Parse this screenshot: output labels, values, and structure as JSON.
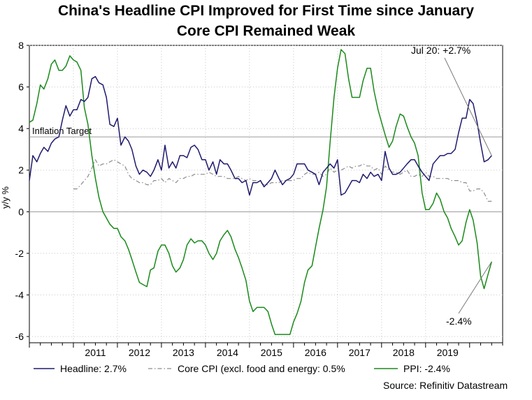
{
  "chart_data": {
    "type": "line",
    "title": "China's Headline CPI Improved for First Time since January",
    "subtitle": "Core CPI Remained Weak",
    "xlabel": "",
    "ylabel": "y/y %",
    "ylim": [
      -6.3,
      8
    ],
    "yticks": [
      8,
      6,
      4,
      2,
      0,
      -2,
      -4,
      -6
    ],
    "xticks": [
      "2011",
      "2012",
      "2013",
      "2014",
      "2015",
      "2016",
      "2017",
      "2018",
      "2019"
    ],
    "xlim": [
      2010.0,
      2020.75
    ],
    "grid": true,
    "reference_lines": [
      {
        "label": "Inflation Target",
        "value": 3.6
      },
      {
        "label": "",
        "value": 0
      }
    ],
    "annotations": [
      {
        "text": "Jul 20: +2.7%",
        "series": "Headline",
        "x": 2020.5,
        "y": 2.7
      },
      {
        "text": "-2.4%",
        "series": "PPI",
        "x": 2020.5,
        "y": -2.4
      }
    ],
    "x": [
      2010.0,
      2010.08,
      2010.17,
      2010.25,
      2010.33,
      2010.42,
      2010.5,
      2010.58,
      2010.67,
      2010.75,
      2010.83,
      2010.92,
      2011.0,
      2011.08,
      2011.17,
      2011.25,
      2011.33,
      2011.42,
      2011.5,
      2011.58,
      2011.67,
      2011.75,
      2011.83,
      2011.92,
      2012.0,
      2012.08,
      2012.17,
      2012.25,
      2012.33,
      2012.42,
      2012.5,
      2012.58,
      2012.67,
      2012.75,
      2012.83,
      2012.92,
      2013.0,
      2013.08,
      2013.17,
      2013.25,
      2013.33,
      2013.42,
      2013.5,
      2013.58,
      2013.67,
      2013.75,
      2013.83,
      2013.92,
      2014.0,
      2014.08,
      2014.17,
      2014.25,
      2014.33,
      2014.42,
      2014.5,
      2014.58,
      2014.67,
      2014.75,
      2014.83,
      2014.92,
      2015.0,
      2015.08,
      2015.17,
      2015.25,
      2015.33,
      2015.42,
      2015.5,
      2015.58,
      2015.67,
      2015.75,
      2015.83,
      2015.92,
      2016.0,
      2016.08,
      2016.17,
      2016.25,
      2016.33,
      2016.42,
      2016.5,
      2016.58,
      2016.67,
      2016.75,
      2016.83,
      2016.92,
      2017.0,
      2017.08,
      2017.17,
      2017.25,
      2017.33,
      2017.42,
      2017.5,
      2017.58,
      2017.67,
      2017.75,
      2017.83,
      2017.92,
      2018.0,
      2018.08,
      2018.17,
      2018.25,
      2018.33,
      2018.42,
      2018.5,
      2018.58,
      2018.67,
      2018.75,
      2018.83,
      2018.92,
      2019.0,
      2019.08,
      2019.17,
      2019.25,
      2019.33,
      2019.42,
      2019.5,
      2019.58,
      2019.67,
      2019.75,
      2019.83,
      2019.92,
      2020.0,
      2020.08,
      2020.17,
      2020.25,
      2020.33,
      2020.42,
      2020.5
    ],
    "series": [
      {
        "name": "Headline",
        "legend": "Headline: 2.7%",
        "color": "#1f1a6e",
        "style": "solid",
        "values": [
          1.5,
          2.7,
          2.4,
          2.8,
          3.1,
          2.9,
          3.3,
          3.5,
          3.6,
          4.4,
          5.1,
          4.6,
          4.9,
          4.9,
          5.4,
          5.3,
          5.5,
          6.4,
          6.5,
          6.2,
          6.1,
          5.5,
          4.2,
          4.1,
          4.5,
          3.2,
          3.6,
          3.4,
          3.0,
          2.2,
          1.8,
          2.0,
          1.9,
          1.7,
          2.0,
          2.5,
          2.0,
          3.2,
          2.1,
          2.4,
          2.1,
          2.7,
          2.7,
          2.6,
          3.1,
          3.2,
          3.0,
          2.5,
          2.5,
          2.0,
          2.4,
          1.8,
          2.5,
          2.3,
          2.3,
          2.0,
          1.6,
          1.6,
          1.4,
          1.5,
          0.8,
          1.4,
          1.4,
          1.5,
          1.2,
          1.4,
          1.6,
          2.0,
          1.6,
          1.3,
          1.5,
          1.6,
          1.8,
          2.3,
          2.3,
          2.3,
          2.0,
          1.9,
          1.8,
          1.3,
          1.9,
          2.1,
          2.3,
          2.1,
          2.5,
          0.8,
          0.9,
          1.2,
          1.5,
          1.5,
          1.4,
          1.8,
          1.6,
          1.9,
          1.7,
          1.8,
          1.5,
          2.9,
          2.1,
          1.8,
          1.8,
          1.9,
          2.1,
          2.3,
          2.5,
          2.5,
          2.2,
          1.9,
          1.7,
          1.5,
          2.3,
          2.5,
          2.7,
          2.7,
          2.8,
          2.8,
          3.0,
          3.8,
          4.5,
          4.5,
          5.4,
          5.2,
          4.3,
          3.3,
          2.4,
          2.5,
          2.7
        ]
      },
      {
        "name": "Core CPI",
        "legend": "Core CPI (excl. food and energy: 0.5%",
        "color": "#8c8c8c",
        "style": "dashdot",
        "values": [
          null,
          null,
          null,
          null,
          null,
          null,
          null,
          null,
          null,
          null,
          null,
          null,
          1.1,
          1.1,
          1.3,
          1.5,
          1.7,
          2.1,
          2.5,
          2.2,
          2.3,
          2.3,
          2.4,
          2.5,
          2.4,
          2.3,
          2.2,
          1.8,
          1.6,
          1.5,
          1.4,
          1.4,
          1.3,
          1.3,
          1.5,
          1.5,
          1.6,
          1.4,
          1.6,
          1.5,
          1.4,
          1.6,
          1.6,
          1.7,
          1.7,
          1.8,
          1.8,
          1.8,
          1.8,
          1.9,
          1.8,
          1.7,
          1.7,
          1.7,
          1.6,
          1.6,
          1.6,
          1.7,
          1.6,
          1.5,
          1.6,
          1.5,
          1.5,
          1.4,
          1.3,
          1.3,
          1.4,
          1.4,
          1.4,
          1.5,
          1.5,
          1.5,
          1.5,
          1.6,
          1.6,
          1.8,
          1.9,
          1.8,
          1.8,
          1.9,
          1.7,
          1.8,
          2.1,
          1.9,
          2.0,
          2.0,
          2.1,
          2.2,
          2.1,
          2.2,
          2.2,
          2.3,
          2.2,
          2.2,
          2.0,
          2.1,
          1.8,
          2.2,
          2.0,
          1.9,
          1.9,
          1.8,
          1.9,
          2.0,
          1.7,
          1.7,
          1.8,
          1.7,
          1.9,
          1.7,
          1.7,
          1.6,
          1.6,
          1.6,
          1.6,
          1.5,
          1.5,
          1.5,
          1.4,
          1.4,
          1.0,
          1.0,
          1.1,
          1.1,
          0.9,
          0.5,
          0.5
        ]
      },
      {
        "name": "PPI",
        "legend": "PPI: -2.4%",
        "color": "#1a8a1a",
        "style": "solid",
        "values": [
          4.3,
          4.4,
          5.2,
          6.1,
          5.9,
          6.4,
          7.1,
          7.3,
          6.8,
          6.8,
          7.0,
          7.5,
          7.3,
          7.2,
          6.8,
          5.0,
          4.2,
          2.7,
          1.6,
          0.7,
          0.0,
          -0.3,
          -0.6,
          -0.8,
          -0.8,
          -1.2,
          -1.4,
          -1.8,
          -2.3,
          -2.9,
          -3.4,
          -3.5,
          -3.6,
          -2.8,
          -2.7,
          -1.9,
          -1.6,
          -1.6,
          -2.0,
          -2.6,
          -2.9,
          -2.7,
          -2.3,
          -1.6,
          -1.3,
          -1.5,
          -1.4,
          -1.4,
          -1.6,
          -2.0,
          -2.3,
          -2.0,
          -1.4,
          -1.1,
          -0.9,
          -1.2,
          -1.8,
          -2.2,
          -2.7,
          -3.3,
          -4.3,
          -4.8,
          -4.6,
          -4.6,
          -4.6,
          -4.8,
          -5.4,
          -5.9,
          -5.9,
          -5.9,
          -5.9,
          -5.9,
          -5.3,
          -4.9,
          -4.3,
          -3.4,
          -2.8,
          -2.6,
          -1.7,
          -0.8,
          0.1,
          1.2,
          3.3,
          5.5,
          6.9,
          7.8,
          7.6,
          6.4,
          5.5,
          5.5,
          5.5,
          6.3,
          6.9,
          6.9,
          5.8,
          4.9,
          4.3,
          3.7,
          3.1,
          3.4,
          4.1,
          4.7,
          4.6,
          4.1,
          3.6,
          3.3,
          2.7,
          0.9,
          0.1,
          0.1,
          0.4,
          0.9,
          0.6,
          0.0,
          -0.3,
          -0.8,
          -1.2,
          -1.6,
          -1.4,
          -0.5,
          0.1,
          -0.4,
          -1.5,
          -3.1,
          -3.7,
          -3.0,
          -2.4
        ]
      }
    ]
  },
  "legend": {
    "headline": "Headline: 2.7%",
    "core": "Core CPI (excl. food and energy: 0.5%",
    "ppi": "PPI: -2.4%"
  },
  "source": "Source: Refinitiv Datastream"
}
